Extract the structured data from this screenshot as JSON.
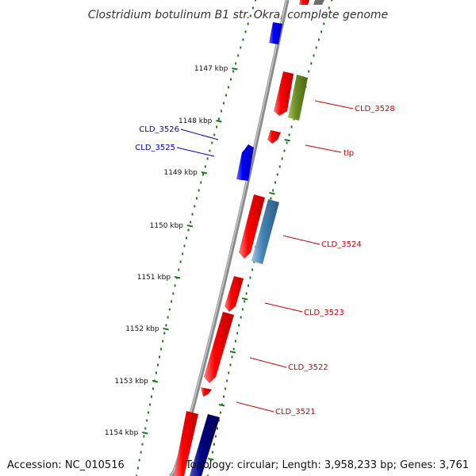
{
  "title": "Clostridium botulinum B1 str. Okra, complete genome",
  "footer": {
    "accession": "Accession: NC_010516",
    "stats": "Topology: circular; Length: 3,958,233 bp; Genes: 3,761"
  },
  "colors": {
    "backbone": "#8a8a8a",
    "scale_dots": "#1f7a1f",
    "cds_red": "#ff0000",
    "cds_blue": "#0000ff",
    "cds_olive": "#6b8e23",
    "cds_steel": "#4682b4",
    "cds_navy": "#000080",
    "label_red": "#cc0000",
    "label_blue": "#0000cc"
  },
  "scale_ticks": [
    {
      "label": "1147 kbp"
    },
    {
      "label": "1148 kbp"
    },
    {
      "label": "1149 kbp"
    },
    {
      "label": "1150 kbp"
    },
    {
      "label": "1151 kbp"
    },
    {
      "label": "1152 kbp"
    },
    {
      "label": "1153 kbp"
    },
    {
      "label": "1154 kbp"
    }
  ],
  "gene_labels": [
    {
      "text": "CLD_3528",
      "color": "red"
    },
    {
      "text": "tlp",
      "color": "red"
    },
    {
      "text": "CLD_3524",
      "color": "red"
    },
    {
      "text": "CLD_3523",
      "color": "red"
    },
    {
      "text": "CLD_3522",
      "color": "red"
    },
    {
      "text": "CLD_3521",
      "color": "red"
    },
    {
      "text": "CLD_3526",
      "color": "blue"
    },
    {
      "text": "CLD_3525",
      "color": "blue"
    }
  ]
}
